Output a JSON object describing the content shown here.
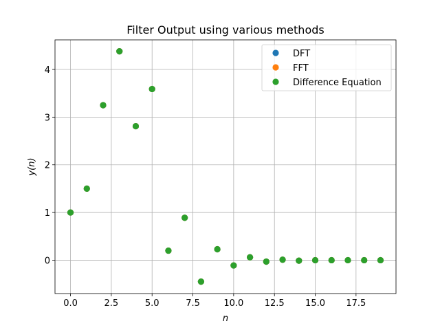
{
  "chart_data": {
    "type": "scatter",
    "title": "Filter Output using various methods",
    "xlabel": "n",
    "ylabel": "y(n)",
    "xlim": [
      -0.95,
      19.95
    ],
    "ylim": [
      -0.7,
      4.62
    ],
    "xticks": [
      0.0,
      2.5,
      5.0,
      7.5,
      10.0,
      12.5,
      15.0,
      17.5
    ],
    "xtick_labels": [
      "0.0",
      "2.5",
      "5.0",
      "7.5",
      "10.0",
      "12.5",
      "15.0",
      "17.5"
    ],
    "yticks": [
      0,
      1,
      2,
      3,
      4
    ],
    "ytick_labels": [
      "0",
      "1",
      "2",
      "3",
      "4"
    ],
    "grid": true,
    "legend_position": "top-right",
    "x": [
      0,
      1,
      2,
      3,
      4,
      5,
      6,
      7,
      8,
      9,
      10,
      11,
      12,
      13,
      14,
      15,
      16,
      17,
      18,
      19
    ],
    "series": [
      {
        "name": "DFT",
        "color": "#1f77b4",
        "values": [
          1.0,
          1.5,
          3.25,
          4.38,
          2.81,
          3.59,
          0.2,
          0.89,
          -0.45,
          0.23,
          -0.11,
          0.06,
          -0.03,
          0.01,
          -0.01,
          0.0,
          0.0,
          0.0,
          0.0,
          0.0
        ]
      },
      {
        "name": "FFT",
        "color": "#ff7f0e",
        "values": [
          1.0,
          1.5,
          3.25,
          4.38,
          2.81,
          3.59,
          0.2,
          0.89,
          -0.45,
          0.23,
          -0.11,
          0.06,
          -0.03,
          0.01,
          -0.01,
          0.0,
          0.0,
          0.0,
          0.0,
          0.0
        ]
      },
      {
        "name": "Difference Equation",
        "color": "#2ca02c",
        "values": [
          1.0,
          1.5,
          3.25,
          4.38,
          2.81,
          3.59,
          0.2,
          0.89,
          -0.45,
          0.23,
          -0.11,
          0.06,
          -0.03,
          0.01,
          -0.01,
          0.0,
          0.0,
          0.0,
          0.0,
          0.0
        ]
      }
    ]
  }
}
